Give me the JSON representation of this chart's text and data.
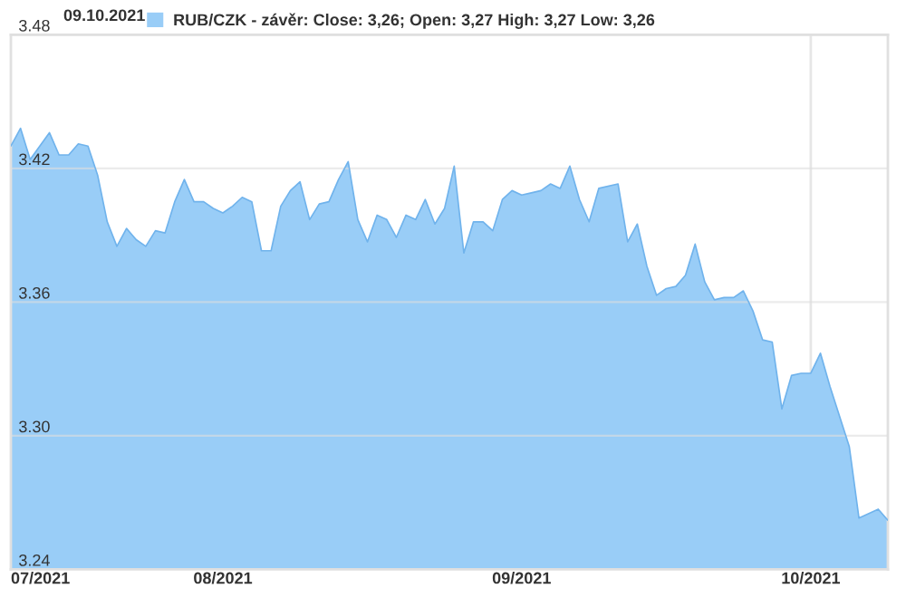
{
  "chart_data": {
    "type": "area",
    "title": "09.10.2021",
    "x": [
      "2021-07-10",
      "2021-07-11",
      "2021-07-12",
      "2021-07-14",
      "2021-07-15",
      "2021-07-16",
      "2021-07-17",
      "2021-07-18",
      "2021-07-19",
      "2021-07-20",
      "2021-07-21",
      "2021-07-22",
      "2021-07-23",
      "2021-07-24",
      "2021-07-25",
      "2021-07-26",
      "2021-07-27",
      "2021-07-28",
      "2021-07-29",
      "2021-07-30",
      "2021-07-31",
      "2021-08-01",
      "2021-08-02",
      "2021-08-03",
      "2021-08-04",
      "2021-08-05",
      "2021-08-06",
      "2021-08-07",
      "2021-08-08",
      "2021-08-09",
      "2021-08-10",
      "2021-08-11",
      "2021-08-12",
      "2021-08-13",
      "2021-08-14",
      "2021-08-15",
      "2021-08-16",
      "2021-08-17",
      "2021-08-18",
      "2021-08-19",
      "2021-08-20",
      "2021-08-21",
      "2021-08-22",
      "2021-08-23",
      "2021-08-24",
      "2021-08-25",
      "2021-08-26",
      "2021-08-27",
      "2021-08-28",
      "2021-08-29",
      "2021-08-30",
      "2021-08-31",
      "2021-09-01",
      "2021-09-02",
      "2021-09-03",
      "2021-09-04",
      "2021-09-05",
      "2021-09-06",
      "2021-09-07",
      "2021-09-08",
      "2021-09-09",
      "2021-09-11",
      "2021-09-12",
      "2021-09-13",
      "2021-09-14",
      "2021-09-15",
      "2021-09-16",
      "2021-09-17",
      "2021-09-18",
      "2021-09-19",
      "2021-09-20",
      "2021-09-21",
      "2021-09-22",
      "2021-09-23",
      "2021-09-24",
      "2021-09-25",
      "2021-09-26",
      "2021-09-27",
      "2021-09-28",
      "2021-09-29",
      "2021-09-30",
      "2021-10-01",
      "2021-10-02",
      "2021-10-03",
      "2021-10-05",
      "2021-10-06",
      "2021-10-08",
      "2021-10-09"
    ],
    "series": [
      {
        "name": "RUB/CZK - závěr: Close: 3,26; Open: 3,27 High: 3,27 Low: 3,26",
        "color": "#99cdf7",
        "values": [
          3.43,
          3.438,
          3.424,
          3.436,
          3.426,
          3.426,
          3.431,
          3.43,
          3.417,
          3.396,
          3.385,
          3.393,
          3.388,
          3.385,
          3.392,
          3.391,
          3.405,
          3.415,
          3.405,
          3.405,
          3.402,
          3.4,
          3.403,
          3.407,
          3.405,
          3.383,
          3.383,
          3.403,
          3.41,
          3.414,
          3.397,
          3.404,
          3.405,
          3.415,
          3.423,
          3.397,
          3.387,
          3.399,
          3.397,
          3.389,
          3.399,
          3.397,
          3.406,
          3.395,
          3.402,
          3.421,
          3.382,
          3.396,
          3.396,
          3.392,
          3.406,
          3.41,
          3.408,
          3.409,
          3.41,
          3.413,
          3.411,
          3.421,
          3.406,
          3.396,
          3.411,
          3.413,
          3.387,
          3.395,
          3.376,
          3.363,
          3.366,
          3.367,
          3.372,
          3.386,
          3.369,
          3.361,
          3.362,
          3.362,
          3.365,
          3.356,
          3.343,
          3.342,
          3.312,
          3.327,
          3.328,
          3.328,
          3.337,
          3.322,
          3.295,
          3.263,
          3.267,
          3.262
        ]
      }
    ],
    "xlim": [
      "2021-07-10",
      "2021-10-09"
    ],
    "xticks": [
      {
        "value": "2021-07-10",
        "label": "07/2021"
      },
      {
        "value": "2021-08-01",
        "label": "08/2021"
      },
      {
        "value": "2021-09-01",
        "label": "09/2021"
      },
      {
        "value": "2021-10-01",
        "label": "10/2021"
      }
    ],
    "ylim": [
      3.24,
      3.48
    ],
    "yticks": [
      {
        "value": 3.24,
        "label": "3.24"
      },
      {
        "value": 3.3,
        "label": "3.30"
      },
      {
        "value": 3.36,
        "label": "3.36"
      },
      {
        "value": 3.42,
        "label": "3.42"
      },
      {
        "value": 3.48,
        "label": "3.48"
      }
    ],
    "grid": "y",
    "ref_lines": [
      {
        "axis": "x",
        "value": "2021-10-01",
        "color": "#e6e6e6"
      }
    ],
    "legend": "top"
  }
}
